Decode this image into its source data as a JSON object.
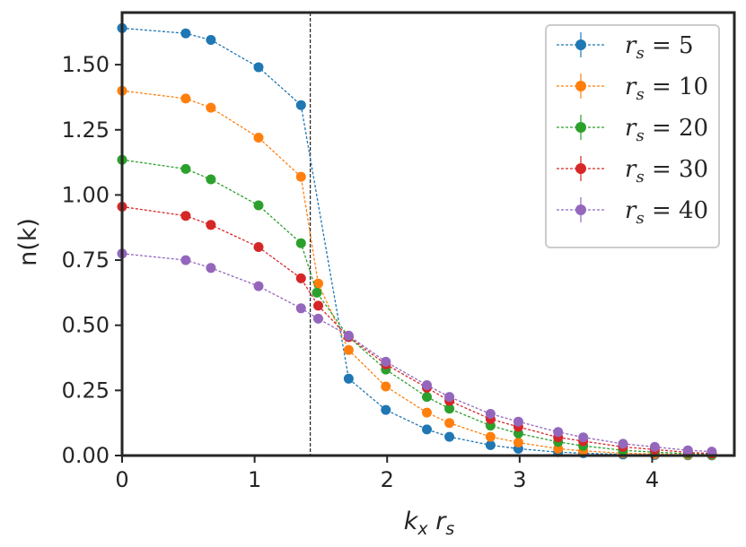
{
  "chart_data": {
    "type": "line",
    "title": "",
    "xlabel_main": "k",
    "xlabel_main_sub": "x",
    "xlabel_second": "r",
    "xlabel_second_sub": "s",
    "ylabel": "n(k)",
    "xlim": [
      0,
      4.62
    ],
    "ylim": [
      0,
      1.7
    ],
    "x_ticks": [
      0,
      1,
      2,
      3,
      4
    ],
    "x_tick_labels": [
      "0",
      "1",
      "2",
      "3",
      "4"
    ],
    "y_ticks": [
      0,
      0.25,
      0.5,
      0.75,
      1.0,
      1.25,
      1.5
    ],
    "y_tick_labels": [
      "0.00",
      "0.25",
      "0.50",
      "0.75",
      "1.00",
      "1.25",
      "1.50"
    ],
    "vline_x": 1.42,
    "grid": false,
    "legend_position": "top-right",
    "series": [
      {
        "name": "r_s = 5",
        "legend_sym": "r",
        "legend_sub": "s",
        "legend_eq": " = 5",
        "color": "#1f77b4",
        "x": [
          0.0,
          0.48,
          0.67,
          1.03,
          1.35,
          1.71,
          1.99,
          2.3,
          2.47,
          2.78,
          2.99,
          3.29,
          3.48,
          3.78,
          4.02,
          4.27,
          4.45
        ],
        "y": [
          1.64,
          1.62,
          1.595,
          1.49,
          1.345,
          0.295,
          0.175,
          0.1,
          0.072,
          0.04,
          0.026,
          0.013,
          0.009,
          0.004,
          0.002,
          0.001,
          0.0005
        ]
      },
      {
        "name": "r_s = 10",
        "legend_sym": "r",
        "legend_sub": "s",
        "legend_eq": " = 10",
        "color": "#ff7f0e",
        "x": [
          0.0,
          0.48,
          0.67,
          1.03,
          1.35,
          1.48,
          1.71,
          1.99,
          2.3,
          2.47,
          2.78,
          2.99,
          3.29,
          3.48,
          3.78,
          4.02,
          4.27,
          4.45
        ],
        "y": [
          1.4,
          1.37,
          1.335,
          1.22,
          1.07,
          0.66,
          0.405,
          0.265,
          0.165,
          0.125,
          0.072,
          0.05,
          0.026,
          0.018,
          0.009,
          0.006,
          0.003,
          0.002
        ]
      },
      {
        "name": "r_s = 20",
        "legend_sym": "r",
        "legend_sub": "s",
        "legend_eq": " = 20",
        "color": "#2ca02c",
        "x": [
          0.0,
          0.48,
          0.67,
          1.03,
          1.35,
          1.47,
          1.71,
          1.99,
          2.3,
          2.47,
          2.78,
          2.99,
          3.29,
          3.48,
          3.78,
          4.02,
          4.27,
          4.45
        ],
        "y": [
          1.135,
          1.1,
          1.06,
          0.96,
          0.815,
          0.625,
          0.455,
          0.33,
          0.225,
          0.18,
          0.115,
          0.085,
          0.052,
          0.037,
          0.02,
          0.013,
          0.007,
          0.004
        ]
      },
      {
        "name": "r_s = 30",
        "legend_sym": "r",
        "legend_sub": "s",
        "legend_eq": " = 30",
        "color": "#d62728",
        "x": [
          0.0,
          0.48,
          0.67,
          1.03,
          1.35,
          1.48,
          1.71,
          1.99,
          2.3,
          2.47,
          2.78,
          2.99,
          3.29,
          3.48,
          3.78,
          4.02,
          4.27,
          4.45
        ],
        "y": [
          0.955,
          0.92,
          0.885,
          0.8,
          0.68,
          0.575,
          0.455,
          0.35,
          0.26,
          0.21,
          0.14,
          0.11,
          0.07,
          0.055,
          0.033,
          0.023,
          0.012,
          0.008
        ]
      },
      {
        "name": "r_s = 40",
        "legend_sym": "r",
        "legend_sub": "s",
        "legend_eq": " = 40",
        "color": "#9467bd",
        "x": [
          0.0,
          0.48,
          0.67,
          1.03,
          1.35,
          1.48,
          1.71,
          1.99,
          2.3,
          2.47,
          2.78,
          2.99,
          3.29,
          3.48,
          3.78,
          4.02,
          4.27,
          4.45
        ],
        "y": [
          0.775,
          0.75,
          0.72,
          0.65,
          0.565,
          0.525,
          0.46,
          0.36,
          0.27,
          0.225,
          0.16,
          0.13,
          0.09,
          0.07,
          0.045,
          0.033,
          0.02,
          0.015
        ]
      }
    ]
  }
}
